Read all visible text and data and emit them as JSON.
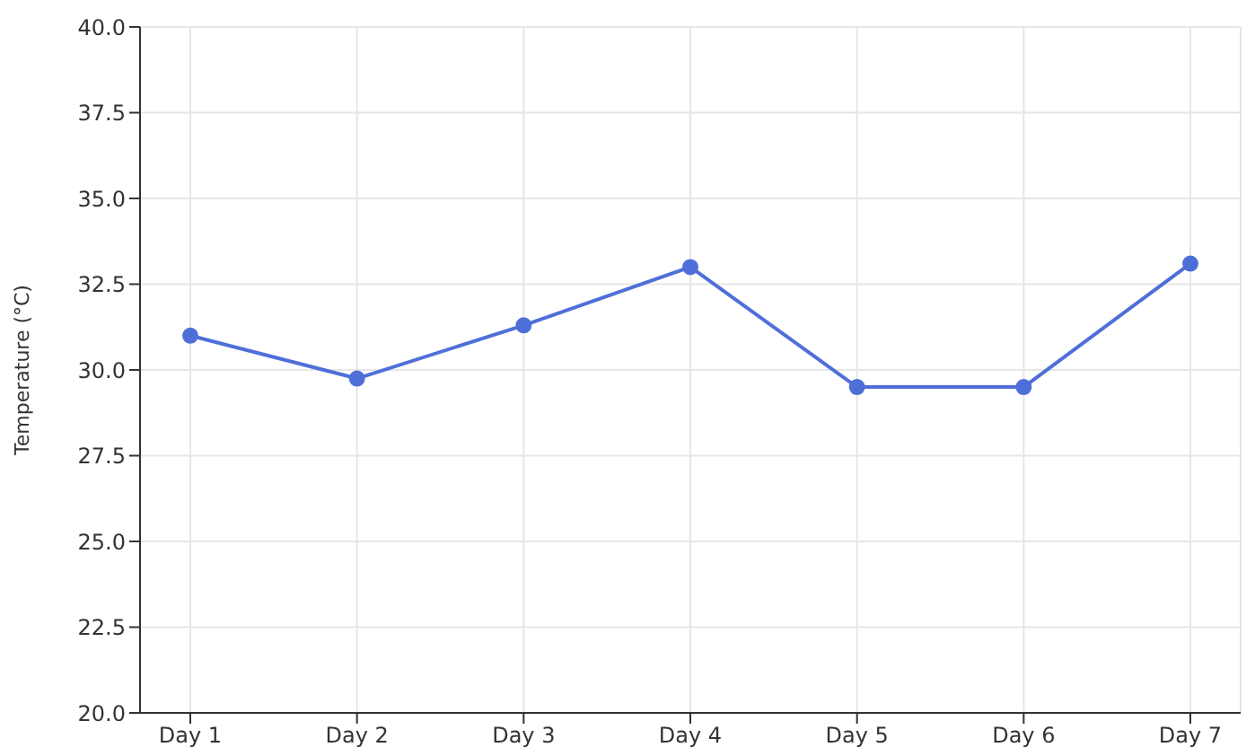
{
  "chart_data": {
    "type": "line",
    "ylabel": "Temperature (°C)",
    "categories": [
      "Day 1",
      "Day 2",
      "Day 3",
      "Day 4",
      "Day 5",
      "Day 6",
      "Day 7"
    ],
    "series": [
      {
        "color": "#4f6fd8",
        "values": [
          31.0,
          29.75,
          31.3,
          33.0,
          29.5,
          29.5,
          33.1
        ]
      }
    ],
    "ylim": [
      20,
      40
    ],
    "yticks": [
      {
        "value": 20,
        "label": "20.0"
      },
      {
        "value": 22.5,
        "label": "22.5"
      },
      {
        "value": 25,
        "label": "25.0"
      },
      {
        "value": 27.5,
        "label": "27.5"
      },
      {
        "value": 30,
        "label": "30.0"
      },
      {
        "value": 32.5,
        "label": "32.5"
      },
      {
        "value": 35,
        "label": "35.0"
      },
      {
        "value": 37.5,
        "label": "37.5"
      },
      {
        "value": 40,
        "label": "40.0"
      }
    ],
    "grid": true,
    "marker": "circle",
    "line_style": "solid"
  }
}
